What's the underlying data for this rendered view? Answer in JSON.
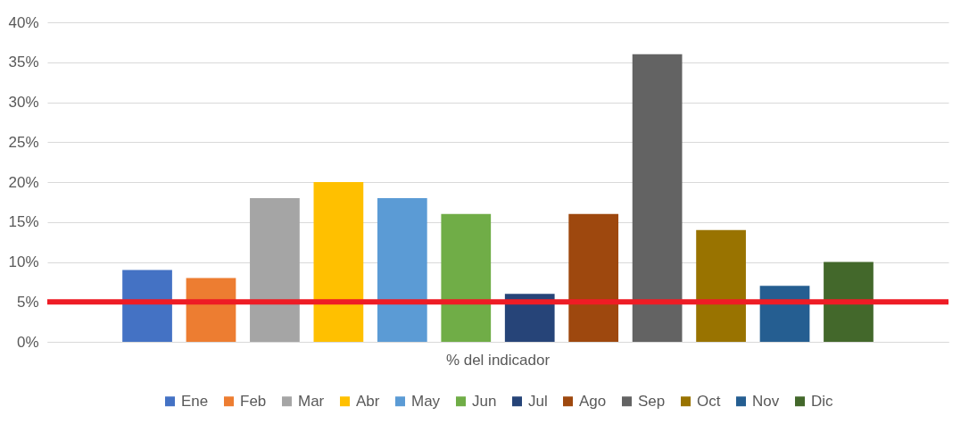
{
  "chart_data": {
    "type": "bar",
    "categories": [
      "% del indicador"
    ],
    "series": [
      {
        "name": "Ene",
        "color": "#4472c4",
        "values": [
          9
        ]
      },
      {
        "name": "Feb",
        "color": "#ed7d31",
        "values": [
          8
        ]
      },
      {
        "name": "Mar",
        "color": "#a5a5a5",
        "values": [
          18
        ]
      },
      {
        "name": "Abr",
        "color": "#ffc000",
        "values": [
          20
        ]
      },
      {
        "name": "May",
        "color": "#5b9bd5",
        "values": [
          18
        ]
      },
      {
        "name": "Jun",
        "color": "#70ad47",
        "values": [
          16
        ]
      },
      {
        "name": "Jul",
        "color": "#264478",
        "values": [
          6
        ]
      },
      {
        "name": "Ago",
        "color": "#9e480e",
        "values": [
          16
        ]
      },
      {
        "name": "Sep",
        "color": "#636363",
        "values": [
          36
        ]
      },
      {
        "name": "Oct",
        "color": "#997300",
        "values": [
          14
        ]
      },
      {
        "name": "Nov",
        "color": "#255e91",
        "values": [
          7
        ]
      },
      {
        "name": "Dic",
        "color": "#43682b",
        "values": [
          10
        ]
      }
    ],
    "ylim": [
      0,
      40
    ],
    "yticks": [
      {
        "value": 0,
        "label": "0%"
      },
      {
        "value": 5,
        "label": "5%"
      },
      {
        "value": 10,
        "label": "10%"
      },
      {
        "value": 15,
        "label": "15%"
      },
      {
        "value": 20,
        "label": "20%"
      },
      {
        "value": 25,
        "label": "25%"
      },
      {
        "value": 30,
        "label": "30%"
      },
      {
        "value": 35,
        "label": "35%"
      },
      {
        "value": 40,
        "label": "40%"
      }
    ],
    "grid": "y",
    "legend": "bottom",
    "ref_lines": [
      {
        "axis": "y",
        "value": 5,
        "color": "#ee1c25",
        "line_style": "solid"
      }
    ]
  }
}
